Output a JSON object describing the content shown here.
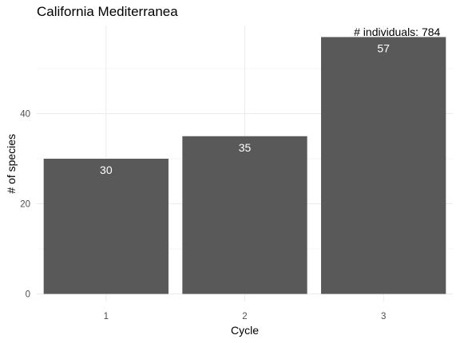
{
  "chart_data": {
    "type": "bar",
    "title": "California Mediterranea",
    "xlabel": "Cycle",
    "ylabel": "# of species",
    "categories": [
      "1",
      "2",
      "3"
    ],
    "values": [
      30,
      35,
      57
    ],
    "data_labels": [
      "30",
      "35",
      "57"
    ],
    "yticks": [
      0,
      20,
      40
    ],
    "ylim": [
      0,
      60
    ],
    "annotation": "# individuals: 784",
    "bar_color": "#595959",
    "grid": true
  }
}
